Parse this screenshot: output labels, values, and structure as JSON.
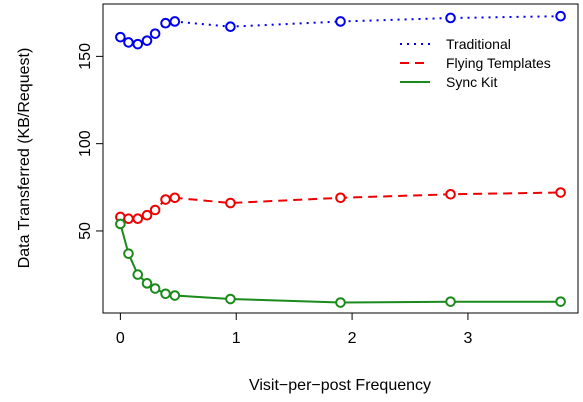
{
  "chart_data": {
    "type": "line",
    "title": "",
    "xlabel": "Visit−per−post Frequency",
    "ylabel": "Data Transferred (KB/Request)",
    "xlim": [
      -0.15,
      3.95
    ],
    "ylim": [
      3,
      180
    ],
    "xticks": [
      0,
      1,
      2,
      3
    ],
    "yticks": [
      50,
      100,
      150
    ],
    "grid": false,
    "legend_position": "top-right",
    "series": [
      {
        "name": "Traditional",
        "color": "#0000ee",
        "line_style": "dotted",
        "x": [
          0.0,
          0.07,
          0.15,
          0.23,
          0.3,
          0.39,
          0.47,
          0.95,
          1.9,
          2.85,
          3.8
        ],
        "y": [
          161,
          158,
          157,
          159,
          163,
          169,
          170,
          167,
          170,
          172,
          173
        ]
      },
      {
        "name": "Flying Templates",
        "color": "#ee0000",
        "line_style": "dashed",
        "x": [
          0.0,
          0.07,
          0.15,
          0.23,
          0.3,
          0.39,
          0.47,
          0.95,
          1.9,
          2.85,
          3.8
        ],
        "y": [
          58,
          57,
          57,
          59,
          62,
          68,
          69,
          66,
          69,
          71,
          72
        ]
      },
      {
        "name": "Sync Kit",
        "color": "#1a8a1a",
        "line_style": "solid",
        "x": [
          0.0,
          0.07,
          0.15,
          0.23,
          0.3,
          0.39,
          0.47,
          0.95,
          1.9,
          2.85,
          3.8
        ],
        "y": [
          54,
          37,
          25,
          20,
          17,
          14,
          13,
          11,
          9,
          9.5,
          9.5
        ]
      }
    ]
  }
}
